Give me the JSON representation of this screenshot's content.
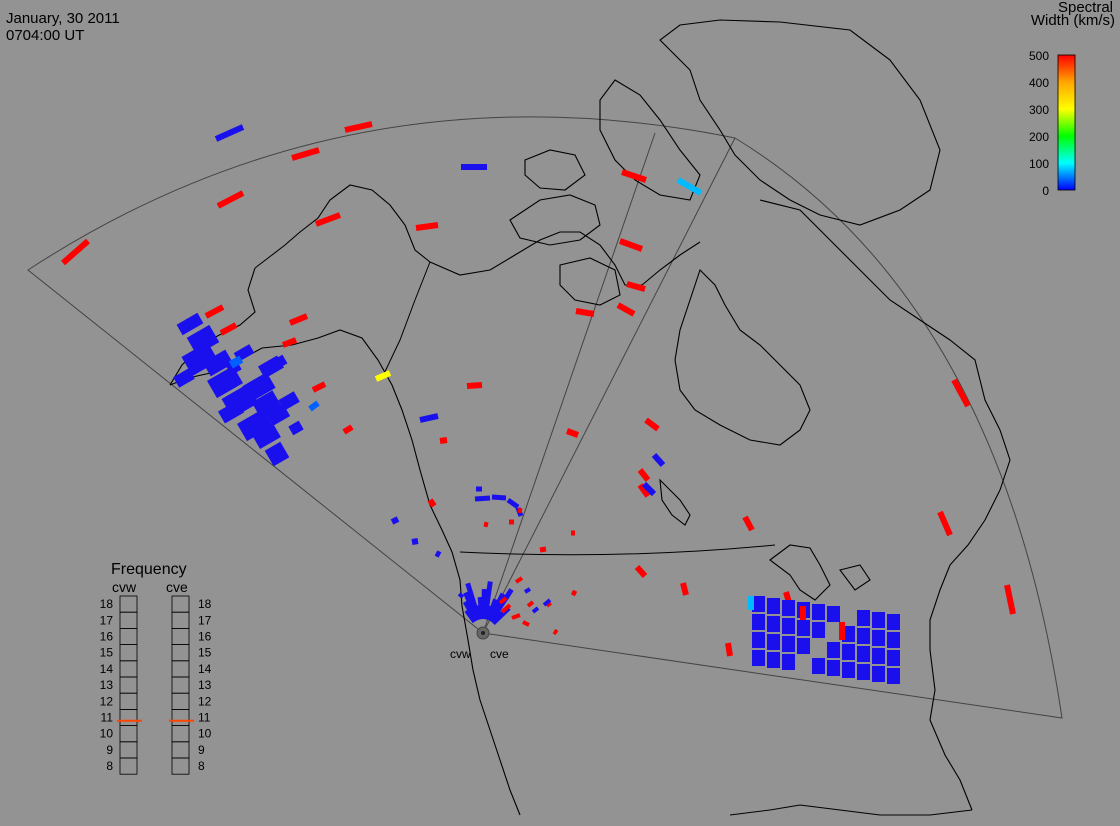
{
  "header": {
    "date": "January, 30 2011",
    "time": "0704:00 UT"
  },
  "colorbar": {
    "title_line1": "Spectral",
    "title_line2": "Width (km/s)",
    "ticks": [
      "500",
      "400",
      "300",
      "200",
      "100",
      "0"
    ],
    "range": [
      0,
      500
    ],
    "colors": [
      "#ff0000",
      "#ffa500",
      "#ffff00",
      "#00ff00",
      "#00ffff",
      "#0000ff"
    ]
  },
  "radars": {
    "west": "cvw",
    "east": "cve"
  },
  "frequency_panel": {
    "title": "Frequency",
    "left_label": "cvw",
    "right_label": "cve",
    "scale": [
      "18",
      "17",
      "16",
      "15",
      "14",
      "13",
      "12",
      "11",
      "10",
      "9",
      "8"
    ],
    "cvw_freq": 10.8,
    "cve_freq": 10.8,
    "marker_color": "#ff4400"
  },
  "map_colors": {
    "background": "#939393",
    "coast": "#000000",
    "fov_line": "#444444"
  }
}
